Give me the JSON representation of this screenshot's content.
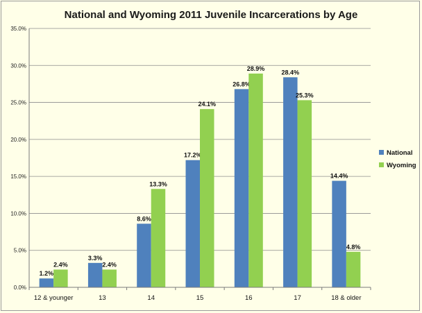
{
  "chart_data": {
    "type": "bar",
    "title": "National and Wyoming 2011 Juvenile Incarcerations by Age",
    "categories": [
      "12 & younger",
      "13",
      "14",
      "15",
      "16",
      "17",
      "18 & older"
    ],
    "series": [
      {
        "name": "National",
        "color": "#4f81bd",
        "values": [
          1.2,
          3.3,
          8.6,
          17.2,
          26.8,
          28.4,
          14.4
        ],
        "labels": [
          "1.2%",
          "3.3%",
          "8.6%",
          "17.2%",
          "26.8%",
          "28.4%",
          "14.4%"
        ]
      },
      {
        "name": "Wyoming",
        "color": "#92d050",
        "values": [
          2.4,
          2.4,
          13.3,
          24.1,
          28.9,
          25.3,
          4.8
        ],
        "labels": [
          "2.4%",
          "2.4%",
          "13.3%",
          "24.1%",
          "28.9%",
          "25.3%",
          "4.8%"
        ]
      }
    ],
    "ylim": [
      0,
      35
    ],
    "yticks": [
      0,
      5,
      10,
      15,
      20,
      25,
      30,
      35
    ],
    "ytick_labels": [
      "0.0%",
      "5.0%",
      "10.0%",
      "15.0%",
      "20.0%",
      "25.0%",
      "30.0%",
      "35.0%"
    ],
    "grid": true,
    "legend_position": "right"
  }
}
